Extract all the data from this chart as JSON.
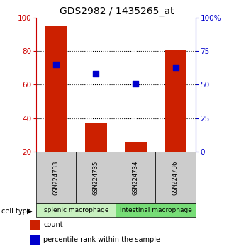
{
  "title": "GDS2982 / 1435265_at",
  "samples": [
    "GSM224733",
    "GSM224735",
    "GSM224734",
    "GSM224736"
  ],
  "counts": [
    95,
    37,
    26,
    81
  ],
  "percentiles": [
    65,
    58,
    51,
    63
  ],
  "ylim_left": [
    20,
    100
  ],
  "yticks_left": [
    20,
    40,
    60,
    80,
    100
  ],
  "ytick_right_labels": [
    "0",
    "25",
    "50",
    "75",
    "100%"
  ],
  "hlines": [
    80,
    60,
    40
  ],
  "bar_color": "#cc2000",
  "dot_color": "#0000cc",
  "cell_groups": [
    {
      "label": "splenic macrophage",
      "indices": [
        0,
        1
      ],
      "color": "#c8f0c0"
    },
    {
      "label": "intestinal macrophage",
      "indices": [
        2,
        3
      ],
      "color": "#77dd77"
    }
  ],
  "cell_type_label": "cell type",
  "legend_count_label": "count",
  "legend_percentile_label": "percentile rank within the sample",
  "bar_width": 0.55,
  "sample_bg_color": "#cccccc",
  "title_fontsize": 10,
  "axis_left_color": "#cc0000",
  "axis_right_color": "#0000cc"
}
